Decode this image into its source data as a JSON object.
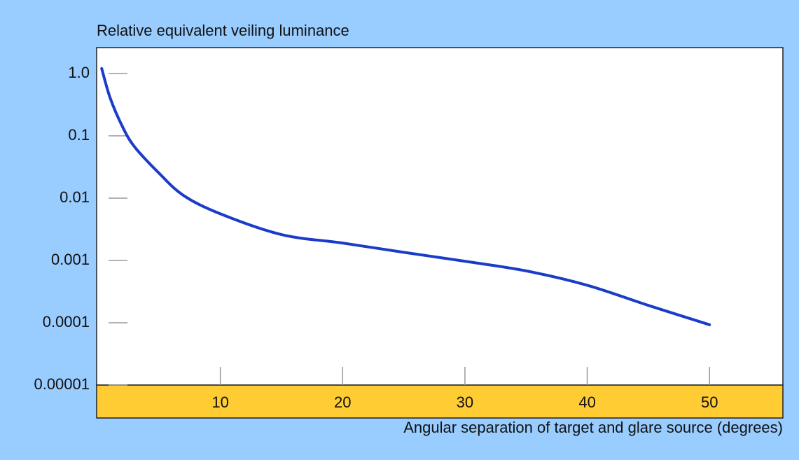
{
  "chart_data": {
    "type": "line",
    "y_label": "Relative equivalent veiling luminance",
    "x_label": "Angular separation of target and glare source (degrees)",
    "yscale": "log",
    "xlim": [
      0,
      56
    ],
    "ylim": [
      1e-05,
      2.6
    ],
    "xticks": [
      10,
      20,
      30,
      40,
      50
    ],
    "yticks": [
      {
        "value": 1,
        "label": "1.0"
      },
      0.1,
      0.01,
      0.001,
      0.0001,
      {
        "value": 1e-05,
        "label": "0.00001"
      }
    ],
    "series": [
      {
        "color": "#1a3cc8",
        "x": [
          0.3,
          1,
          2,
          3,
          5,
          7,
          10,
          15,
          20,
          25,
          30,
          35,
          40,
          45,
          50
        ],
        "values": [
          1.2,
          0.4,
          0.14,
          0.066,
          0.025,
          0.011,
          0.0056,
          0.0026,
          0.0019,
          0.00135,
          0.00097,
          0.00068,
          0.0004,
          0.00019,
          9.3e-05
        ]
      }
    ]
  }
}
